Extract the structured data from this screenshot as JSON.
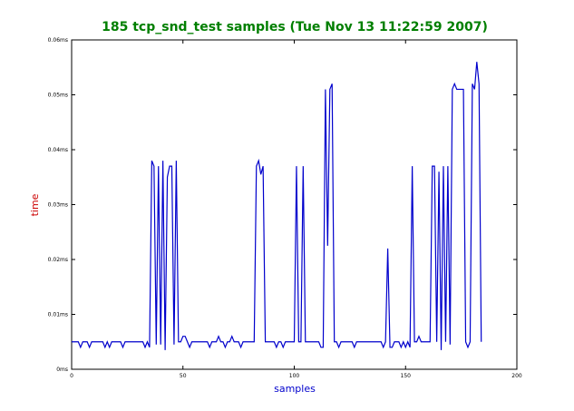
{
  "chart_data": {
    "type": "line",
    "title": "185 tcp_snd_test samples (Tue Nov 13 11:22:59 2007)",
    "xlabel": "samples",
    "ylabel": "time",
    "xlim": [
      0,
      200
    ],
    "ylim": [
      0,
      0.06
    ],
    "x_ticks": [
      0,
      50,
      100,
      150,
      200
    ],
    "x_tick_labels": [
      "0",
      "50",
      "100",
      "150",
      "200"
    ],
    "y_ticks": [
      0,
      0.01,
      0.02,
      0.03,
      0.04,
      0.05,
      0.06
    ],
    "y_tick_labels": [
      "0ms",
      "0.01ms",
      "0.02ms",
      "0.03ms",
      "0.04ms",
      "0.05ms",
      "0.06ms"
    ],
    "grid": false,
    "legend": "none",
    "colors": {
      "title": "#007f00",
      "xlabel": "#0000cc",
      "ylabel": "#cc0000",
      "line": "#0000cc"
    },
    "series": [
      {
        "values": [
          [
            0,
            0.005
          ],
          [
            3,
            0.005
          ],
          [
            4,
            0.004
          ],
          [
            5,
            0.005
          ],
          [
            7,
            0.005
          ],
          [
            8,
            0.004
          ],
          [
            9,
            0.005
          ],
          [
            14,
            0.005
          ],
          [
            15,
            0.004
          ],
          [
            16,
            0.005
          ],
          [
            17,
            0.004
          ],
          [
            18,
            0.005
          ],
          [
            22,
            0.005
          ],
          [
            23,
            0.004
          ],
          [
            24,
            0.005
          ],
          [
            32,
            0.005
          ],
          [
            33,
            0.004
          ],
          [
            34,
            0.005
          ],
          [
            35,
            0.004
          ],
          [
            36,
            0.038
          ],
          [
            37,
            0.037
          ],
          [
            38,
            0.0045
          ],
          [
            39,
            0.037
          ],
          [
            40,
            0.0045
          ],
          [
            41,
            0.038
          ],
          [
            42,
            0.0035
          ],
          [
            43,
            0.035
          ],
          [
            44,
            0.037
          ],
          [
            45,
            0.037
          ],
          [
            46,
            0.0045
          ],
          [
            47,
            0.038
          ],
          [
            48,
            0.005
          ],
          [
            49,
            0.005
          ],
          [
            50,
            0.006
          ],
          [
            51,
            0.006
          ],
          [
            52,
            0.005
          ],
          [
            53,
            0.004
          ],
          [
            54,
            0.005
          ],
          [
            61,
            0.005
          ],
          [
            62,
            0.004
          ],
          [
            63,
            0.005
          ],
          [
            65,
            0.005
          ],
          [
            66,
            0.006
          ],
          [
            67,
            0.005
          ],
          [
            68,
            0.005
          ],
          [
            69,
            0.004
          ],
          [
            70,
            0.005
          ],
          [
            71,
            0.005
          ],
          [
            72,
            0.006
          ],
          [
            73,
            0.005
          ],
          [
            75,
            0.005
          ],
          [
            76,
            0.004
          ],
          [
            77,
            0.005
          ],
          [
            82,
            0.005
          ],
          [
            83,
            0.037
          ],
          [
            84,
            0.038
          ],
          [
            85,
            0.0355
          ],
          [
            86,
            0.037
          ],
          [
            87,
            0.005
          ],
          [
            91,
            0.005
          ],
          [
            92,
            0.004
          ],
          [
            93,
            0.005
          ],
          [
            94,
            0.005
          ],
          [
            95,
            0.004
          ],
          [
            96,
            0.005
          ],
          [
            100,
            0.005
          ],
          [
            101,
            0.037
          ],
          [
            102,
            0.005
          ],
          [
            103,
            0.005
          ],
          [
            104,
            0.037
          ],
          [
            105,
            0.005
          ],
          [
            111,
            0.005
          ],
          [
            112,
            0.004
          ],
          [
            113,
            0.004
          ],
          [
            114,
            0.051
          ],
          [
            115,
            0.0225
          ],
          [
            116,
            0.051
          ],
          [
            117,
            0.052
          ],
          [
            118,
            0.005
          ],
          [
            119,
            0.005
          ],
          [
            120,
            0.004
          ],
          [
            121,
            0.005
          ],
          [
            126,
            0.005
          ],
          [
            127,
            0.004
          ],
          [
            128,
            0.005
          ],
          [
            139,
            0.005
          ],
          [
            140,
            0.004
          ],
          [
            141,
            0.005
          ],
          [
            142,
            0.022
          ],
          [
            143,
            0.004
          ],
          [
            144,
            0.004
          ],
          [
            145,
            0.005
          ],
          [
            147,
            0.005
          ],
          [
            148,
            0.004
          ],
          [
            149,
            0.005
          ],
          [
            150,
            0.004
          ],
          [
            151,
            0.005
          ],
          [
            152,
            0.004
          ],
          [
            153,
            0.037
          ],
          [
            154,
            0.005
          ],
          [
            155,
            0.005
          ],
          [
            156,
            0.006
          ],
          [
            157,
            0.005
          ],
          [
            161,
            0.005
          ],
          [
            162,
            0.037
          ],
          [
            163,
            0.037
          ],
          [
            164,
            0.005
          ],
          [
            165,
            0.036
          ],
          [
            166,
            0.0035
          ],
          [
            167,
            0.037
          ],
          [
            168,
            0.005
          ],
          [
            169,
            0.037
          ],
          [
            170,
            0.0045
          ],
          [
            171,
            0.051
          ],
          [
            172,
            0.052
          ],
          [
            173,
            0.051
          ],
          [
            176,
            0.051
          ],
          [
            177,
            0.005
          ],
          [
            178,
            0.004
          ],
          [
            179,
            0.005
          ],
          [
            180,
            0.052
          ],
          [
            181,
            0.051
          ],
          [
            182,
            0.056
          ],
          [
            183,
            0.052
          ],
          [
            184,
            0.005
          ]
        ]
      }
    ]
  }
}
